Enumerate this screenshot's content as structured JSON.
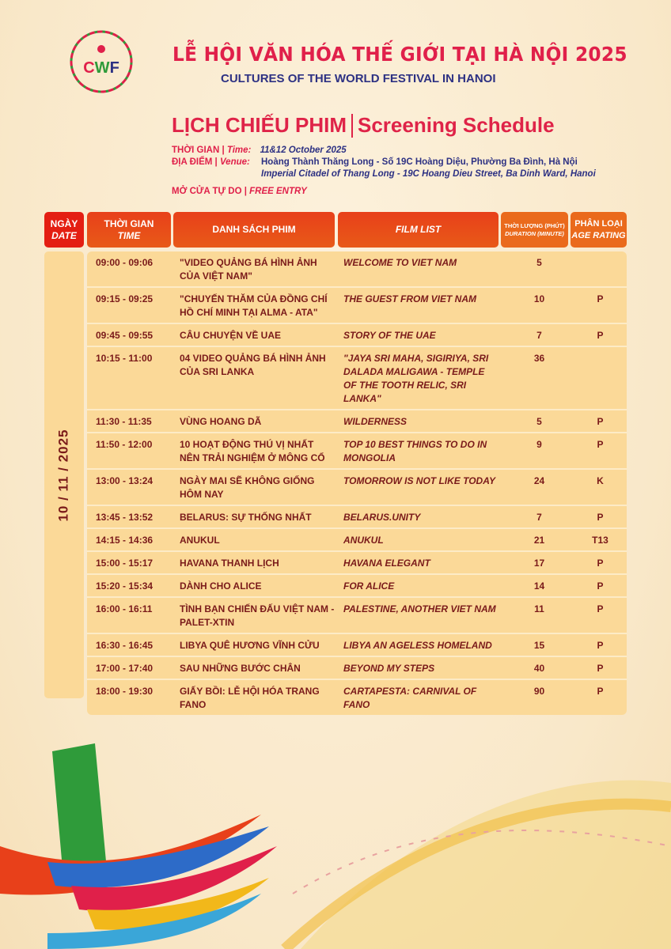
{
  "header": {
    "logo_text": "CWF",
    "title": "LỄ HỘI VĂN HÓA THẾ GIỚI TẠI HÀ NỘI 2025",
    "subtitle": "CULTURES OF THE WORLD FESTIVAL IN HANOI",
    "schedule_vn": "LỊCH CHIẾU PHIM",
    "schedule_en": "Screening Schedule"
  },
  "info": {
    "time_label_vn": "THỜI GIAN | ",
    "time_label_en": "Time:",
    "time_value": "11&12 October 2025",
    "venue_label_vn": "ĐỊA ĐIỂM | ",
    "venue_label_en": "Venue:",
    "venue_vn": "Hoàng Thành Thăng Long - Số 19C Hoàng Diệu, Phường Ba Đình, Hà Nội",
    "venue_en": "Imperial Citadel of Thang Long - 19C Hoang Dieu Street, Ba Dinh Ward, Hanoi",
    "entry_vn": "MỞ CỬA TỰ DO | ",
    "entry_en": "FREE ENTRY"
  },
  "table": {
    "headers": {
      "date_vn": "NGÀY",
      "date_en": "DATE",
      "time_vn": "THỜI GIAN",
      "time_en": "TIME",
      "film_vn": "DANH SÁCH PHIM",
      "film_en": "FILM LIST",
      "duration_vn": "THỜI LƯỢNG (PHÚT)",
      "duration_en": "DURATION (MINUTE)",
      "rating_vn": "PHÂN LOẠI",
      "rating_en": "AGE RATING"
    },
    "date": "10 / 11 / 2025",
    "rows": [
      {
        "time": "09:00 - 09:06",
        "vn": "\"VIDEO QUẢNG BÁ HÌNH ẢNH CỦA VIỆT NAM\"",
        "en": "WELCOME TO VIET NAM",
        "duration": "5",
        "rating": ""
      },
      {
        "time": "09:15 - 09:25",
        "vn": "\"CHUYẾN THĂM CỦA ĐỒNG CHÍ HỒ CHÍ MINH TẠI ALMA - ATA\"",
        "en": "THE GUEST FROM VIET NAM",
        "duration": "10",
        "rating": "P"
      },
      {
        "time": "09:45 - 09:55",
        "vn": "CÂU CHUYỆN VỀ UAE",
        "en": "STORY OF THE UAE",
        "duration": "7",
        "rating": "P"
      },
      {
        "time": "10:15 - 11:00",
        "vn": "04 VIDEO QUẢNG BÁ HÌNH ẢNH CỦA SRI LANKA",
        "en": "\"JAYA SRI MAHA, SIGIRIYA, SRI DALADA MALIGAWA - TEMPLE OF THE TOOTH RELIC, SRI LANKA\"",
        "duration": "36",
        "rating": ""
      },
      {
        "time": "11:30 - 11:35",
        "vn": "VÙNG HOANG DÃ",
        "en": "WILDERNESS",
        "duration": "5",
        "rating": "P"
      },
      {
        "time": "11:50 - 12:00",
        "vn": "10 HOẠT ĐỘNG THÚ VỊ NHẤT NÊN TRẢI NGHIỆM Ở MÔNG CỔ",
        "en": "TOP 10 BEST THINGS TO DO IN MONGOLIA",
        "duration": "9",
        "rating": "P"
      },
      {
        "time": "13:00 - 13:24",
        "vn": "NGÀY MAI SẼ KHÔNG GIỐNG HÔM NAY",
        "en": "TOMORROW IS NOT LIKE TODAY",
        "duration": "24",
        "rating": "K"
      },
      {
        "time": "13:45 - 13:52",
        "vn": "BELARUS: SỰ THỐNG NHẤT",
        "en": "BELARUS.UNITY",
        "duration": "7",
        "rating": "P"
      },
      {
        "time": "14:15 - 14:36",
        "vn": "ANUKUL",
        "en": "ANUKUL",
        "duration": "21",
        "rating": "T13"
      },
      {
        "time": "15:00 - 15:17",
        "vn": "HAVANA THANH LỊCH",
        "en": "HAVANA ELEGANT",
        "duration": "17",
        "rating": "P"
      },
      {
        "time": "15:20 - 15:34",
        "vn": "DÀNH CHO ALICE",
        "en": "FOR ALICE",
        "duration": "14",
        "rating": "P"
      },
      {
        "time": "16:00 - 16:11",
        "vn": "TÌNH BẠN CHIẾN ĐẤU VIỆT NAM - PALET-XTIN",
        "en": "PALESTINE, ANOTHER VIET NAM",
        "duration": "11",
        "rating": "P"
      },
      {
        "time": "16:30 - 16:45",
        "vn": "LIBYA QUÊ HƯƠNG VĨNH CỬU",
        "en": "LIBYA AN AGELESS HOMELAND",
        "duration": "15",
        "rating": "P"
      },
      {
        "time": "17:00 - 17:40",
        "vn": "SAU NHỮNG BƯỚC CHÂN",
        "en": "BEYOND MY STEPS",
        "duration": "40",
        "rating": "P"
      },
      {
        "time": "18:00 - 19:30",
        "vn": "GIẤY BỒI: LỄ HỘI HÓA TRANG FANO",
        "en": "CARTAPESTA: CARNIVAL OF FANO",
        "duration": "90",
        "rating": "P"
      }
    ]
  },
  "colors": {
    "title_red": "#e0204a",
    "navy": "#2d3183",
    "header_orange": "#e8401a",
    "row_bg": "#fbd998",
    "text_brown": "#7a1a1a"
  }
}
